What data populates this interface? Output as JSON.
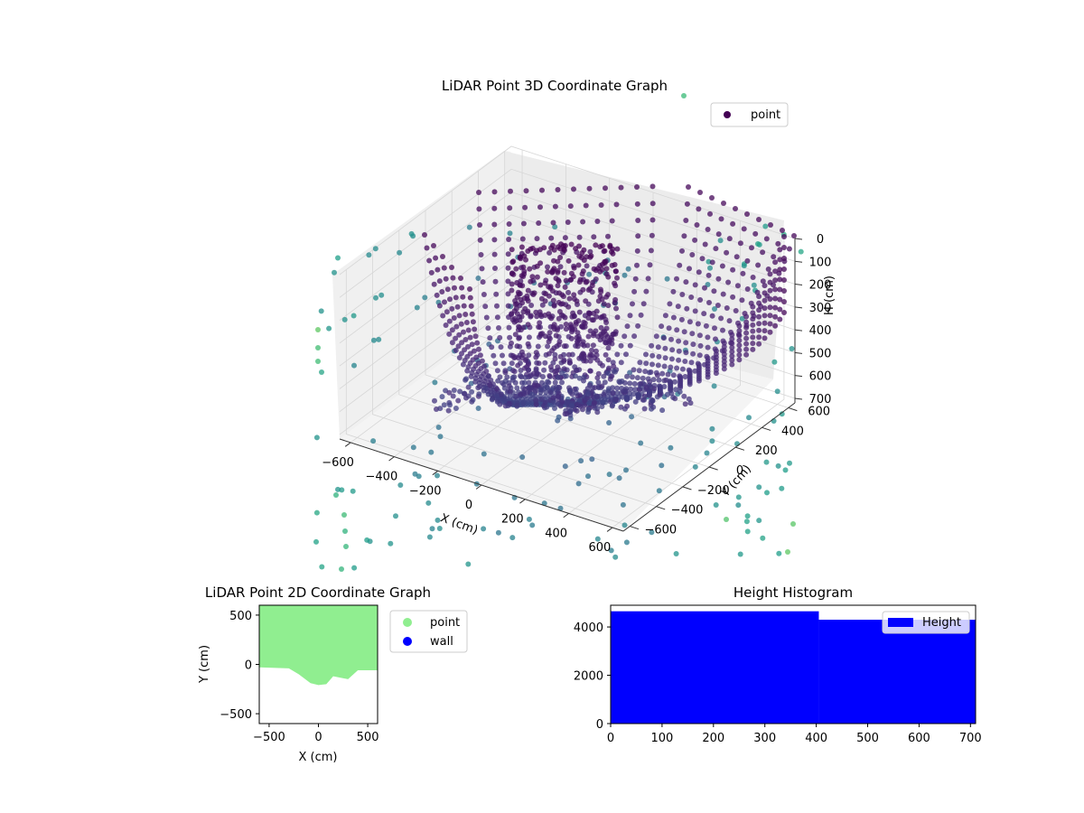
{
  "chart_data": [
    {
      "type": "scatter",
      "title": "LiDAR Point 3D Coordinate Graph",
      "xlabel": "X (cm)",
      "ylabel": "Y (cm)",
      "zlabel": "H (cm)",
      "x_ticks": [
        -600,
        -400,
        -200,
        0,
        200,
        400,
        600
      ],
      "y_ticks": [
        -600,
        -400,
        -200,
        0,
        200,
        400,
        600
      ],
      "z_ticks": [
        0,
        100,
        200,
        300,
        400,
        500,
        600,
        700
      ],
      "xlim": [
        -650,
        650
      ],
      "ylim": [
        -650,
        650
      ],
      "zlim": [
        0,
        720
      ],
      "z_axis_inverted": true,
      "colormap": "viridis",
      "grid": true,
      "legend": {
        "position": "top-right",
        "entries": [
          {
            "label": "point",
            "color": "#440154"
          }
        ]
      }
    },
    {
      "type": "scatter",
      "title": "LiDAR Point 2D Coordinate Graph",
      "xlabel": "X (cm)",
      "ylabel": "Y (cm)",
      "xlim": [
        -600,
        600
      ],
      "ylim": [
        -600,
        600
      ],
      "x_ticks": [
        -500,
        0,
        500
      ],
      "y_ticks": [
        -500,
        0,
        500
      ],
      "series": [
        {
          "name": "point",
          "color": "#90ee90",
          "boundary": [
            [
              -600,
              600
            ],
            [
              600,
              600
            ],
            [
              600,
              -60
            ],
            [
              400,
              -60
            ],
            [
              300,
              -150
            ],
            [
              150,
              -120
            ],
            [
              80,
              -200
            ],
            [
              0,
              -210
            ],
            [
              -80,
              -190
            ],
            [
              -200,
              -100
            ],
            [
              -300,
              -40
            ],
            [
              -600,
              -30
            ]
          ]
        },
        {
          "name": "wall",
          "color": "#0000ff",
          "boundary": []
        }
      ],
      "legend": {
        "position": "outside-right"
      }
    },
    {
      "type": "bar",
      "title": "Height Histogram",
      "xlim": [
        0,
        710
      ],
      "ylim": [
        0,
        4900
      ],
      "x_ticks": [
        0,
        100,
        200,
        300,
        400,
        500,
        600,
        700
      ],
      "y_ticks": [
        0,
        2000,
        4000
      ],
      "series": [
        {
          "name": "Height",
          "color": "#0000ff",
          "bins": [
            {
              "x0": 0,
              "x1": 405,
              "count": 4650
            },
            {
              "x0": 405,
              "x1": 710,
              "count": 4300
            }
          ]
        }
      ],
      "legend": {
        "position": "top-right"
      }
    }
  ]
}
